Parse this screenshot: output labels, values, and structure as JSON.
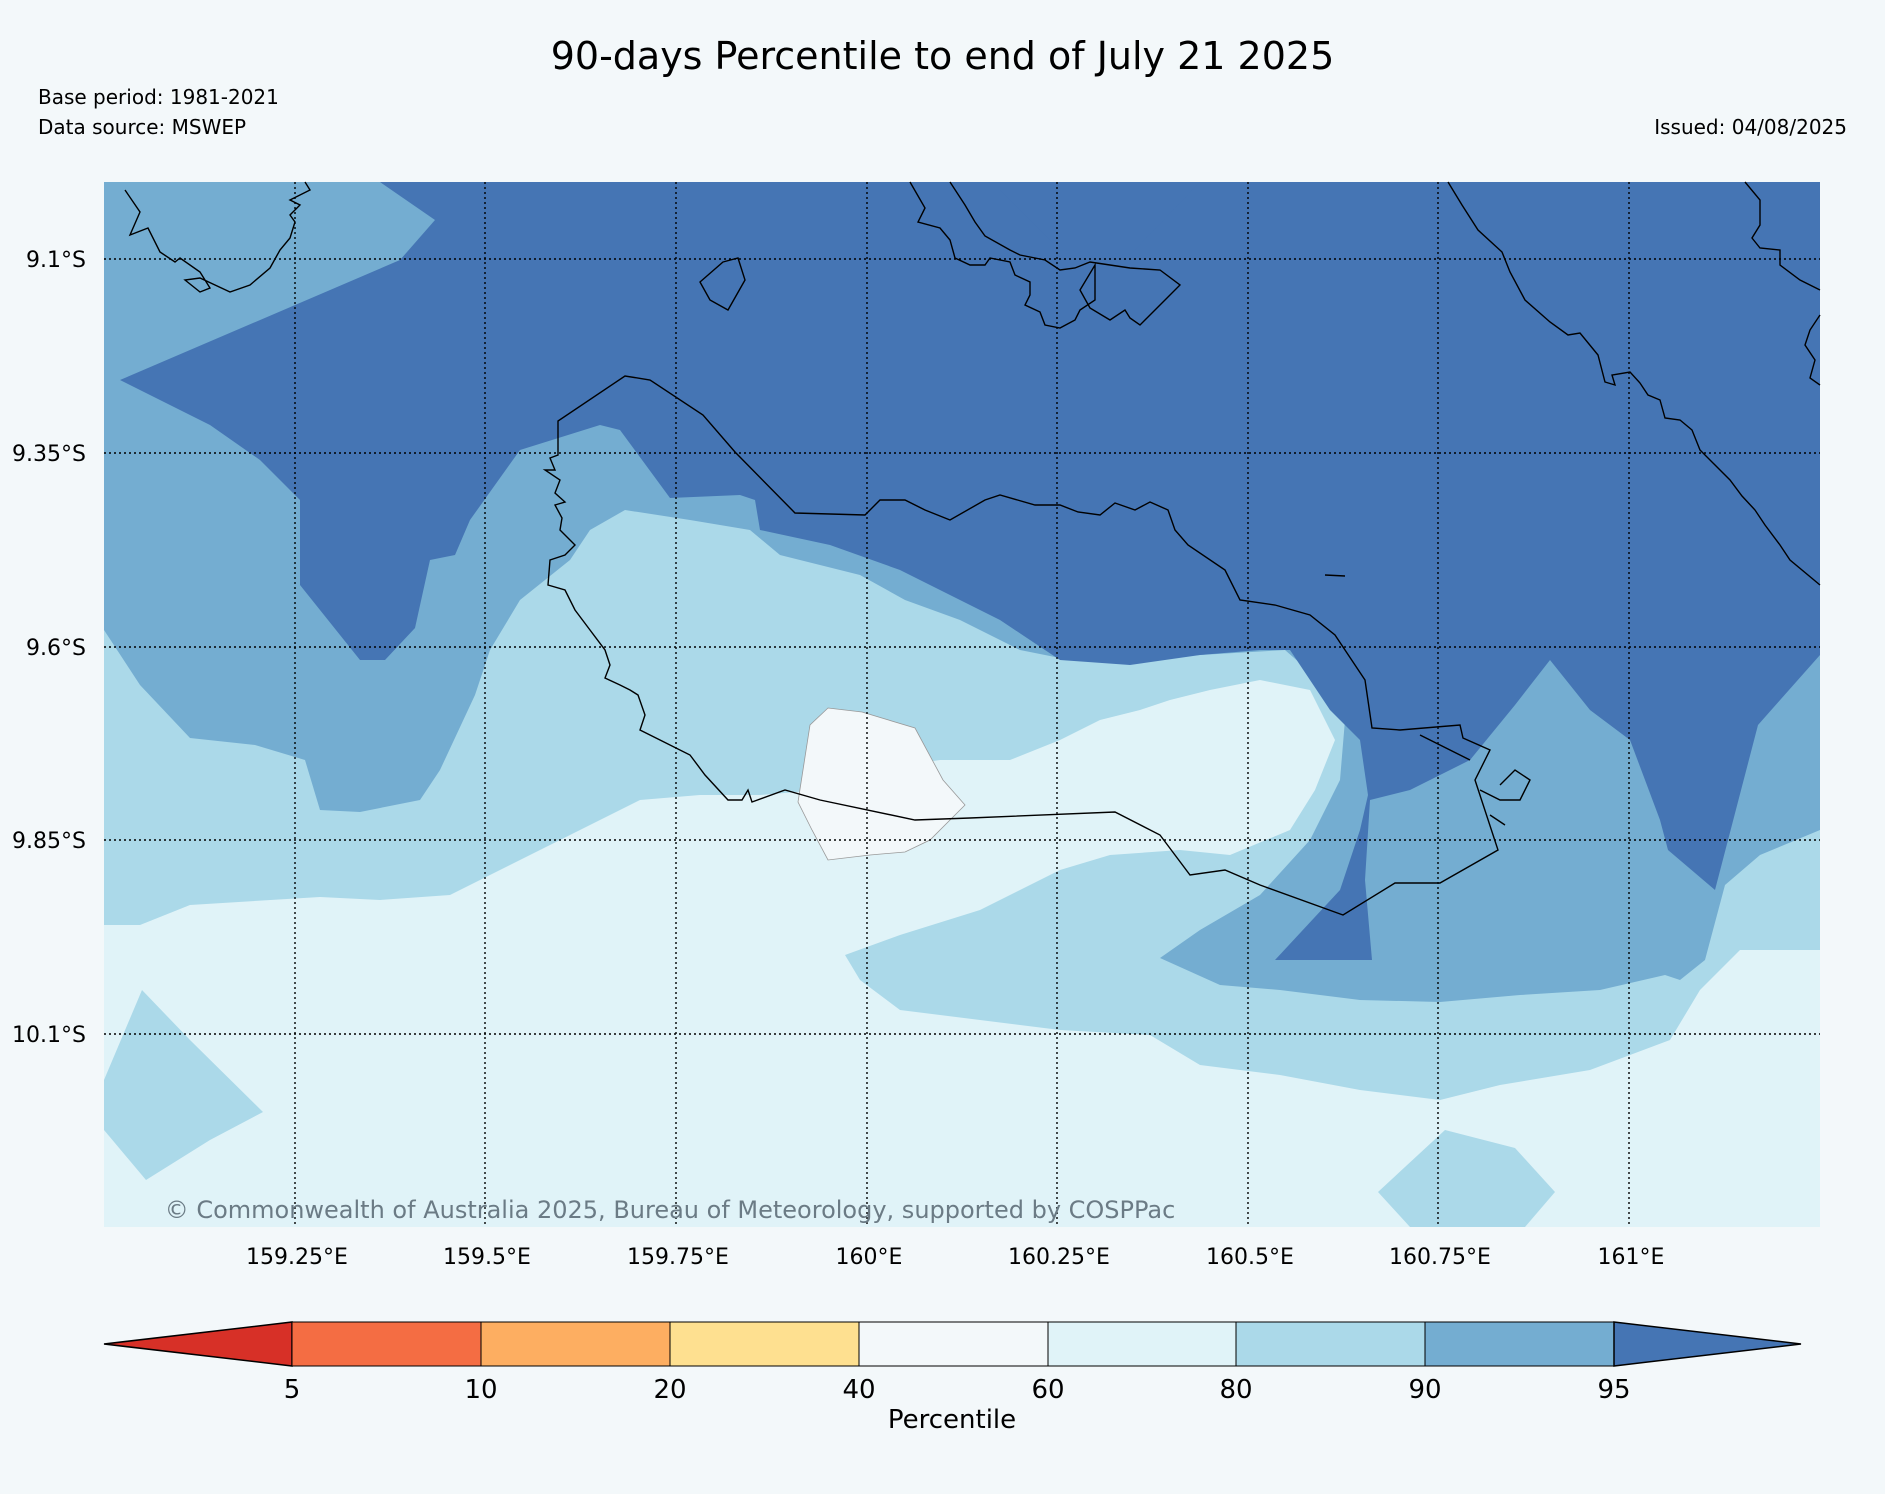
{
  "title": "90-days Percentile to end of July 21 2025",
  "info": {
    "base_period": "Base period: 1981-2021",
    "data_source": "Data source: MSWEP",
    "issued": "Issued: 04/08/2025"
  },
  "map": {
    "latitude_labels": [
      "9.1°S",
      "9.35°S",
      "9.6°S",
      "9.85°S",
      "10.1°S"
    ],
    "longitude_labels": [
      "159.25°E",
      "159.5°E",
      "159.75°E",
      "160°E",
      "160.25°E",
      "160.5°E",
      "160.75°E",
      "161°E"
    ],
    "copyright": "© Commonwealth of Australia 2025, Bureau of Meteorology, supported by COSPPac",
    "colors": {
      "above_95": "#4575b4",
      "p90_95": "#74add1",
      "p80_90": "#abd9e9",
      "p60_80": "#e0f3f8",
      "p40_60": "#f3f8fa",
      "coastline": "#000000"
    }
  },
  "colorbar": {
    "label": "Percentile",
    "ticks": [
      "5",
      "10",
      "20",
      "40",
      "60",
      "80",
      "90",
      "95"
    ],
    "colors": [
      "#d73027",
      "#f46d43",
      "#fdae61",
      "#fee090",
      "#f3f8fa",
      "#e0f3f8",
      "#abd9e9",
      "#74add1",
      "#4575b4"
    ]
  }
}
